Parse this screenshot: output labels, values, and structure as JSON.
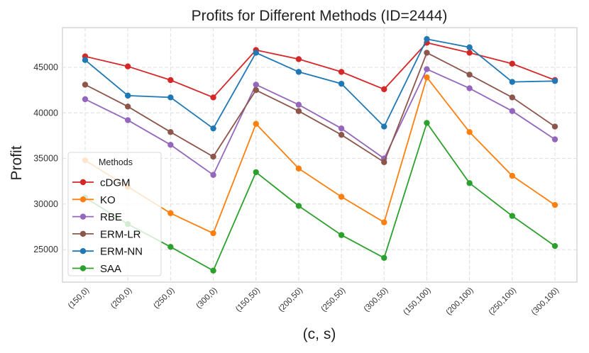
{
  "chart_data": {
    "type": "line",
    "title": "Profits for Different Methods (ID=2444)",
    "xlabel": "(c, s)",
    "ylabel": "Profit",
    "categories": [
      "(150,0)",
      "(200,0)",
      "(250,0)",
      "(300,0)",
      "(150,50)",
      "(200,50)",
      "(250,50)",
      "(300,50)",
      "(150,100)",
      "(200,100)",
      "(250,100)",
      "(300,100)"
    ],
    "yticks": [
      25000,
      30000,
      35000,
      40000,
      45000
    ],
    "ytick_labels": [
      "25000",
      "30000",
      "35000",
      "40000",
      "45000"
    ],
    "ylim": [
      21700,
      48900
    ],
    "grid": true,
    "legend": {
      "title": "Methods",
      "placement": "center-left"
    },
    "series": [
      {
        "name": "cDGM",
        "color": "#d62728",
        "values": [
          46200,
          45100,
          43600,
          41700,
          46900,
          45900,
          44500,
          42600,
          47700,
          46600,
          45400,
          43600
        ]
      },
      {
        "name": "KO",
        "color": "#ff7f0e",
        "values": [
          34800,
          31900,
          29000,
          26800,
          38800,
          33900,
          30800,
          28000,
          43900,
          37900,
          33100,
          29900
        ]
      },
      {
        "name": "RBE",
        "color": "#9467bd",
        "values": [
          41500,
          39200,
          36500,
          33200,
          43100,
          40900,
          38300,
          35000,
          44800,
          42700,
          40200,
          37100
        ]
      },
      {
        "name": "ERM-LR",
        "color": "#8c564b",
        "values": [
          43100,
          40700,
          37900,
          35200,
          42500,
          40200,
          37600,
          34600,
          46600,
          44200,
          41700,
          38500
        ]
      },
      {
        "name": "ERM-NN",
        "color": "#1f77b4",
        "values": [
          45800,
          41900,
          41700,
          38300,
          46600,
          44500,
          43200,
          38500,
          48100,
          47200,
          43400,
          43500
        ]
      },
      {
        "name": "SAA",
        "color": "#2ca02c",
        "values": [
          30700,
          27800,
          25300,
          22700,
          33500,
          29800,
          26600,
          24100,
          38900,
          32300,
          28700,
          25400
        ]
      }
    ]
  }
}
